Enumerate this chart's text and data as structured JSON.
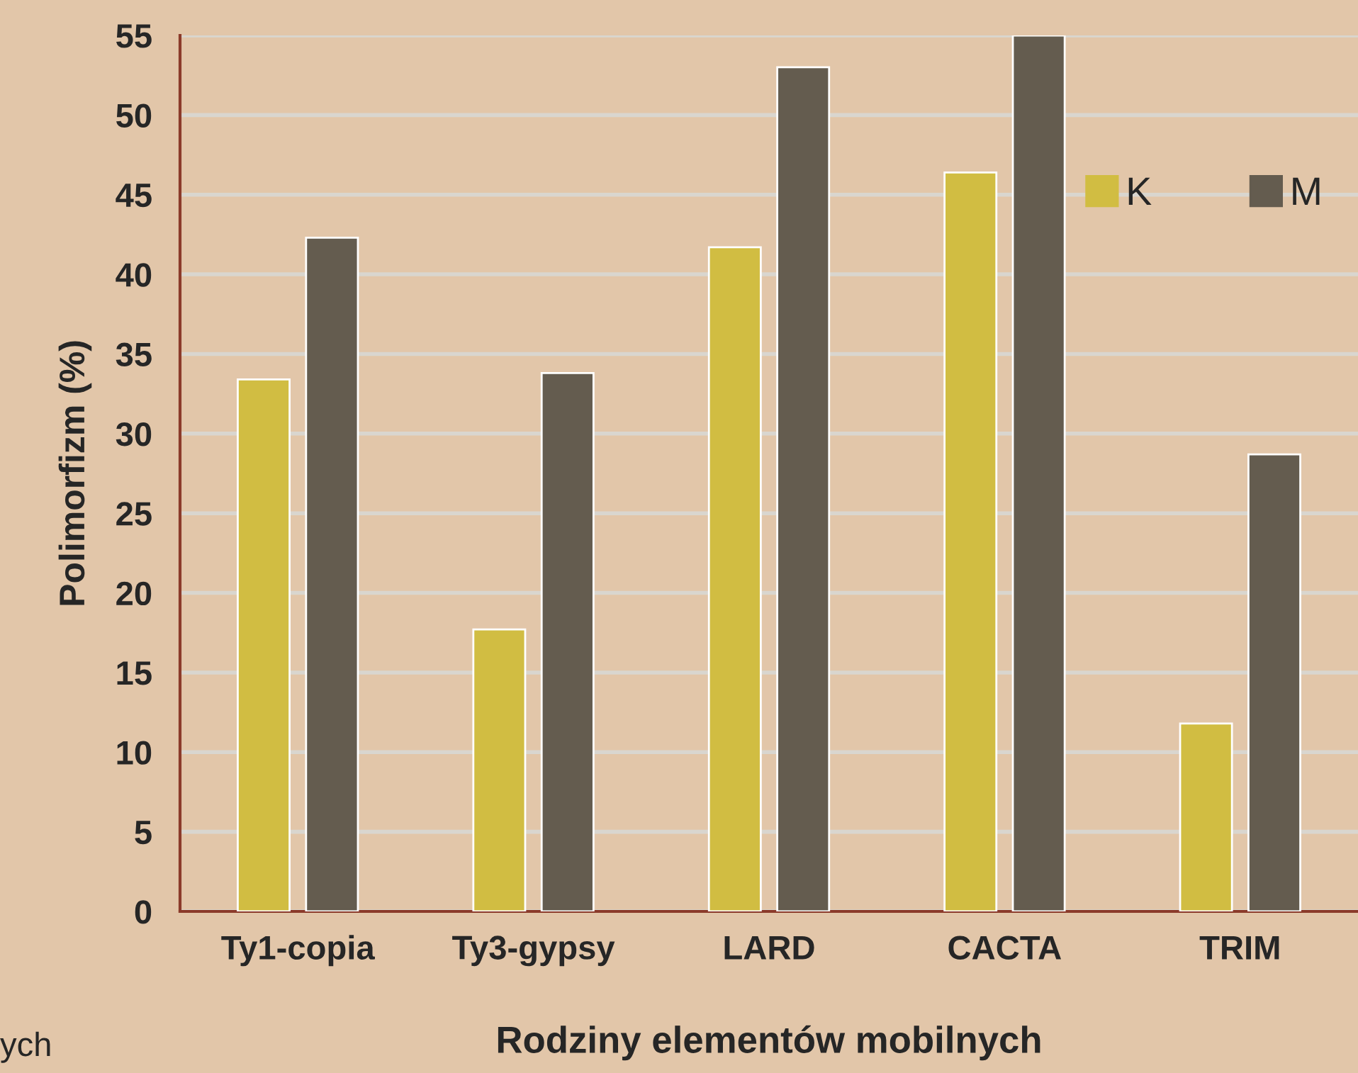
{
  "chart_data": {
    "type": "bar",
    "xlabel": "Rodziny elementów mobilnych",
    "ylabel": "Polimorfizm (%)",
    "categories": [
      "Ty1-copia",
      "Ty3-gypsy",
      "LARD",
      "CACTA",
      "TRIM"
    ],
    "series": [
      {
        "name": "K",
        "color": "#d1bd42",
        "values": [
          33.4,
          17.7,
          41.7,
          46.4,
          11.8
        ]
      },
      {
        "name": "M",
        "color": "#645c4f",
        "values": [
          42.3,
          33.8,
          53.0,
          55.0,
          28.7
        ]
      }
    ],
    "ylim": [
      0,
      55
    ],
    "yticks": [
      0,
      5,
      10,
      15,
      20,
      25,
      30,
      35,
      40,
      45,
      50,
      55
    ],
    "grid": "y",
    "legend": "top right",
    "annotations": [
      "ych"
    ]
  }
}
